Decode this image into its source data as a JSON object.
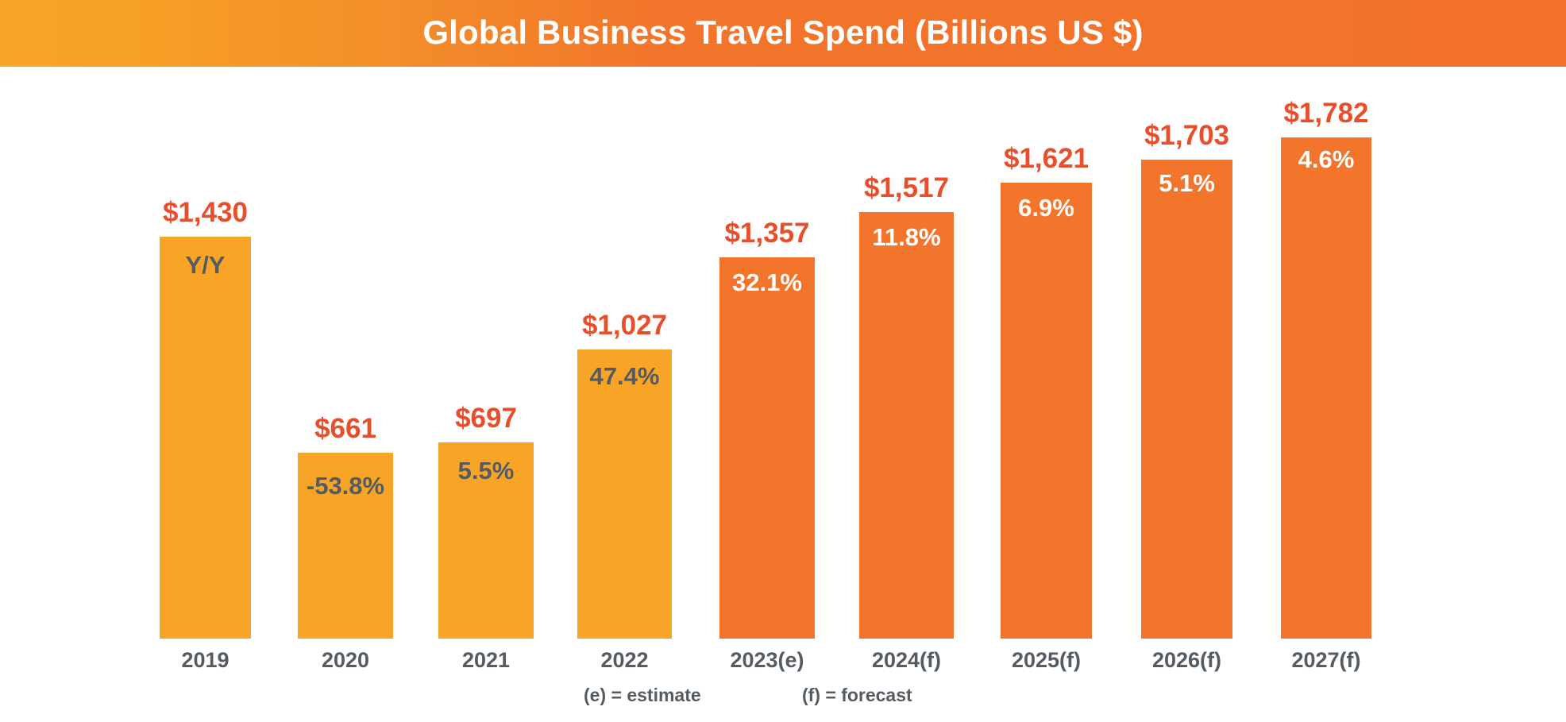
{
  "header": {
    "title": "Global Business Travel Spend (Billions US $)",
    "gradient_start": "#F8A627",
    "gradient_end": "#F2722B"
  },
  "colors": {
    "actual_bar": "#F8A427",
    "projected_bar": "#F2752B",
    "value_label": "#E94E2B",
    "dark_text": "#555B63",
    "light_text": "#FFFFFF"
  },
  "legend": {
    "estimate": "(e) = estimate",
    "forecast": "(f) = forecast"
  },
  "bars": [
    {
      "category": "2019",
      "value_label": "$1,430",
      "pct_label": "Y/Y",
      "type": "actual"
    },
    {
      "category": "2020",
      "value_label": "$661",
      "pct_label": "-53.8%",
      "type": "actual"
    },
    {
      "category": "2021",
      "value_label": "$697",
      "pct_label": "5.5%",
      "type": "actual"
    },
    {
      "category": "2022",
      "value_label": "$1,027",
      "pct_label": "47.4%",
      "type": "actual"
    },
    {
      "category": "2023(e)",
      "value_label": "$1,357",
      "pct_label": "32.1%",
      "type": "projected"
    },
    {
      "category": "2024(f)",
      "value_label": "$1,517",
      "pct_label": "11.8%",
      "type": "projected"
    },
    {
      "category": "2025(f)",
      "value_label": "$1,621",
      "pct_label": "6.9%",
      "type": "projected"
    },
    {
      "category": "2026(f)",
      "value_label": "$1,703",
      "pct_label": "5.1%",
      "type": "projected"
    },
    {
      "category": "2027(f)",
      "value_label": "$1,782",
      "pct_label": "4.6%",
      "type": "projected"
    }
  ],
  "chart_data": {
    "type": "bar",
    "title": "Global Business Travel Spend (Billions US $)",
    "xlabel": "",
    "ylabel": "Billions US $",
    "categories": [
      "2019",
      "2020",
      "2021",
      "2022",
      "2023(e)",
      "2024(f)",
      "2025(f)",
      "2026(f)",
      "2027(f)"
    ],
    "values": [
      1430,
      661,
      697,
      1027,
      1357,
      1517,
      1621,
      1703,
      1782
    ],
    "value_labels": [
      "$1,430",
      "$661",
      "$697",
      "$1,027",
      "$1,357",
      "$1,517",
      "$1,621",
      "$1,703",
      "$1,782"
    ],
    "yoy_change_pct": [
      null,
      -53.8,
      5.5,
      47.4,
      32.1,
      11.8,
      6.9,
      5.1,
      4.6
    ],
    "yoy_labels": [
      "Y/Y",
      "-53.8%",
      "5.5%",
      "47.4%",
      "32.1%",
      "11.8%",
      "6.9%",
      "5.1%",
      "4.6%"
    ],
    "series_type": [
      "actual",
      "actual",
      "actual",
      "actual",
      "estimate",
      "forecast",
      "forecast",
      "forecast",
      "forecast"
    ],
    "annotations": [
      "(e) = estimate",
      "(f) = forecast"
    ],
    "ylim": [
      0,
      1800
    ],
    "grid": false,
    "legend_position": "bottom"
  }
}
